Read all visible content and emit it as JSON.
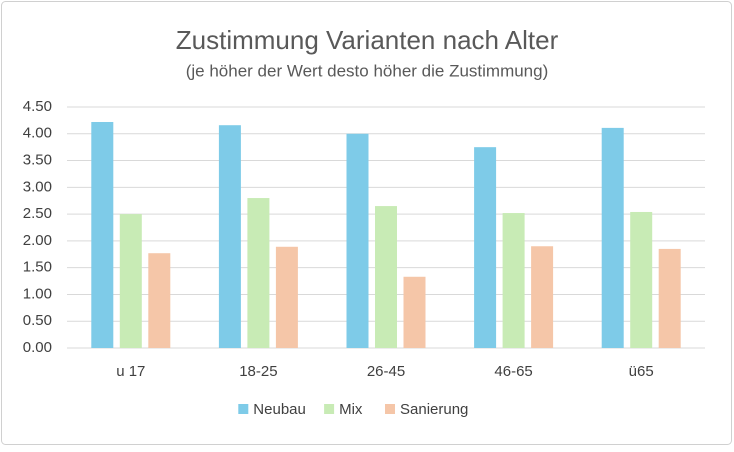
{
  "chart_data": {
    "type": "bar",
    "title": "Zustimmung Varianten nach Alter",
    "subtitle": "(je höher der Wert desto höher die Zustimmung)",
    "categories": [
      "u 17",
      "18-25",
      "26-45",
      "46-65",
      "ü65"
    ],
    "series": [
      {
        "name": "Neubau",
        "color": "#7ecbe8",
        "values": [
          4.22,
          4.16,
          4.0,
          3.75,
          4.11
        ]
      },
      {
        "name": "Mix",
        "color": "#c8ebb5",
        "values": [
          2.5,
          2.8,
          2.65,
          2.52,
          2.54
        ]
      },
      {
        "name": "Sanierung",
        "color": "#f5c6a8",
        "values": [
          1.77,
          1.89,
          1.33,
          1.9,
          1.85
        ]
      }
    ],
    "ylim": [
      0,
      4.5
    ],
    "yticks": [
      {
        "value": 0,
        "label": "0.00"
      },
      {
        "value": 0.5,
        "label": "0.50"
      },
      {
        "value": 1,
        "label": "1.00"
      },
      {
        "value": 1.5,
        "label": "1.50"
      },
      {
        "value": 2,
        "label": "2.00"
      },
      {
        "value": 2.5,
        "label": "2.50"
      },
      {
        "value": 3,
        "label": "3.00"
      },
      {
        "value": 3.5,
        "label": "3.50"
      },
      {
        "value": 4,
        "label": "4.00"
      },
      {
        "value": 4.5,
        "label": "4.50"
      }
    ],
    "grid": true,
    "legend": "bottom"
  }
}
